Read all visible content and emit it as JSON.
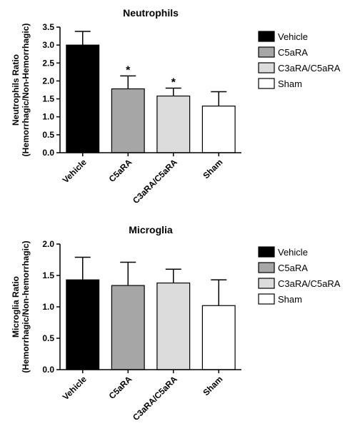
{
  "chart_data": [
    {
      "type": "bar",
      "title": "Neutrophils",
      "ylabel_line1": "Neutrophils Ratio",
      "ylabel_line2": "(Hemorrhagic/Non-Hemorrhagic)",
      "xlabel": "",
      "categories": [
        "Vehicle",
        "C5aRA",
        "C3aRA/C5aRA",
        "Sham"
      ],
      "values": [
        3.0,
        1.78,
        1.58,
        1.3
      ],
      "errors": [
        0.38,
        0.36,
        0.22,
        0.4
      ],
      "significance": [
        "",
        "*",
        "*",
        ""
      ],
      "colors": [
        "#000000",
        "#a6a6a6",
        "#dcdcdc",
        "#ffffff"
      ],
      "ylim": [
        0,
        3.5
      ],
      "yticks": [
        "0.0",
        "0.5",
        "1.0",
        "1.5",
        "2.0",
        "2.5",
        "3.0",
        "3.5"
      ],
      "legend": [
        "Vehicle",
        "C5aRA",
        "C3aRA/C5aRA",
        "Sham"
      ],
      "legend_position": "right",
      "grid": false
    },
    {
      "type": "bar",
      "title": "Microglia",
      "ylabel_line1": "Microglia Ratio",
      "ylabel_line2": "(Hemorrhagic/Non-hemorrhagic)",
      "xlabel": "",
      "categories": [
        "Vehicle",
        "C5aRA",
        "C3aRA/C5aRA",
        "Sham"
      ],
      "values": [
        1.43,
        1.34,
        1.38,
        1.02
      ],
      "errors": [
        0.36,
        0.37,
        0.22,
        0.41
      ],
      "significance": [
        "",
        "",
        "",
        ""
      ],
      "colors": [
        "#000000",
        "#a6a6a6",
        "#dcdcdc",
        "#ffffff"
      ],
      "ylim": [
        0,
        2.0
      ],
      "yticks": [
        "0.0",
        "0.5",
        "1.0",
        "1.5",
        "2.0"
      ],
      "legend": [
        "Vehicle",
        "C5aRA",
        "C3aRA/C5aRA",
        "Sham"
      ],
      "legend_position": "right",
      "grid": false
    }
  ]
}
